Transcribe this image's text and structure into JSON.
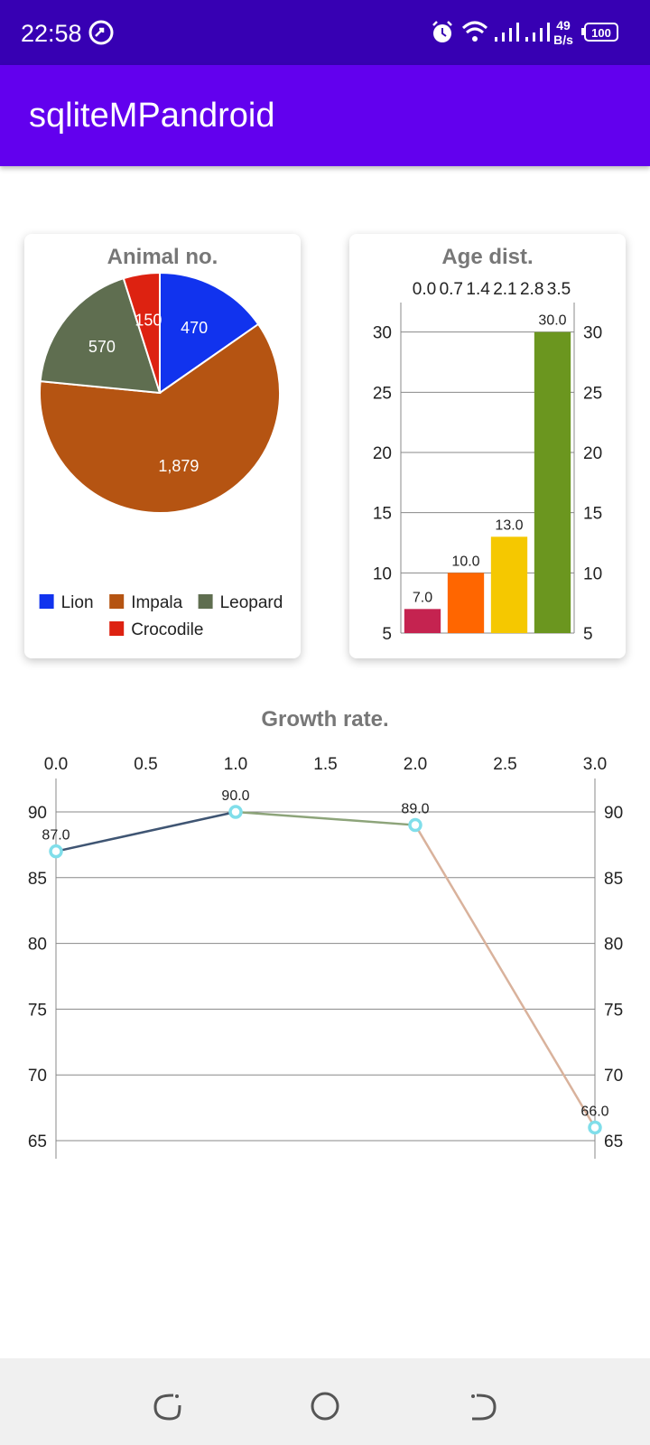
{
  "status_bar": {
    "time": "22:58",
    "net_speed_value": "49",
    "net_speed_unit": "B/s",
    "battery": "100"
  },
  "app_bar": {
    "title": "sqliteMPandroid"
  },
  "charts": {
    "pie": {
      "title": "Animal no.",
      "chart_data": {
        "type": "pie",
        "title": "Animal no.",
        "slices": [
          {
            "label": "Lion",
            "value": 470,
            "display": "470",
            "color": "#1133ee"
          },
          {
            "label": "Impala",
            "value": 1879,
            "display": "1,879",
            "color": "#b55412"
          },
          {
            "label": "Leopard",
            "value": 570,
            "display": "570",
            "color": "#5f6e50"
          },
          {
            "label": "Crocodile",
            "value": 150,
            "display": "150",
            "color": "#dd2211"
          }
        ],
        "legend_position": "bottom-center"
      }
    },
    "bar": {
      "title": "Age dist.",
      "chart_data": {
        "type": "bar",
        "title": "Age dist.",
        "top_axis_labels": [
          "0.0",
          "0.7",
          "1.4",
          "2.1",
          "2.8",
          "3.5"
        ],
        "y_ticks": [
          "5",
          "10",
          "15",
          "20",
          "25",
          "30"
        ],
        "ylim": [
          5,
          32
        ],
        "grid": true,
        "bars": [
          {
            "value": 7.0,
            "label": "7.0",
            "color": "#c52350"
          },
          {
            "value": 10.0,
            "label": "10.0",
            "color": "#ff6600"
          },
          {
            "value": 13.0,
            "label": "13.0",
            "color": "#f5c800"
          },
          {
            "value": 30.0,
            "label": "30.0",
            "color": "#6b961f"
          }
        ]
      }
    },
    "line": {
      "title": "Growth rate.",
      "chart_data": {
        "type": "line",
        "title": "Growth rate.",
        "x_ticks": [
          "0.0",
          "0.5",
          "1.0",
          "1.5",
          "2.0",
          "2.5",
          "3.0"
        ],
        "y_ticks": [
          "65",
          "70",
          "75",
          "80",
          "85",
          "90"
        ],
        "xlim": [
          0,
          3
        ],
        "ylim": [
          64.3,
          91.4
        ],
        "grid": true,
        "points": [
          {
            "x": 0,
            "y": 87.0,
            "label": "87.0"
          },
          {
            "x": 1,
            "y": 90.0,
            "label": "90.0"
          },
          {
            "x": 2,
            "y": 89.0,
            "label": "89.0"
          },
          {
            "x": 3,
            "y": 66.0,
            "label": "66.0"
          }
        ],
        "segment_colors": [
          "#3f5573",
          "#8da47a",
          "#d9b29c"
        ],
        "marker_color": "#80deea"
      }
    }
  }
}
